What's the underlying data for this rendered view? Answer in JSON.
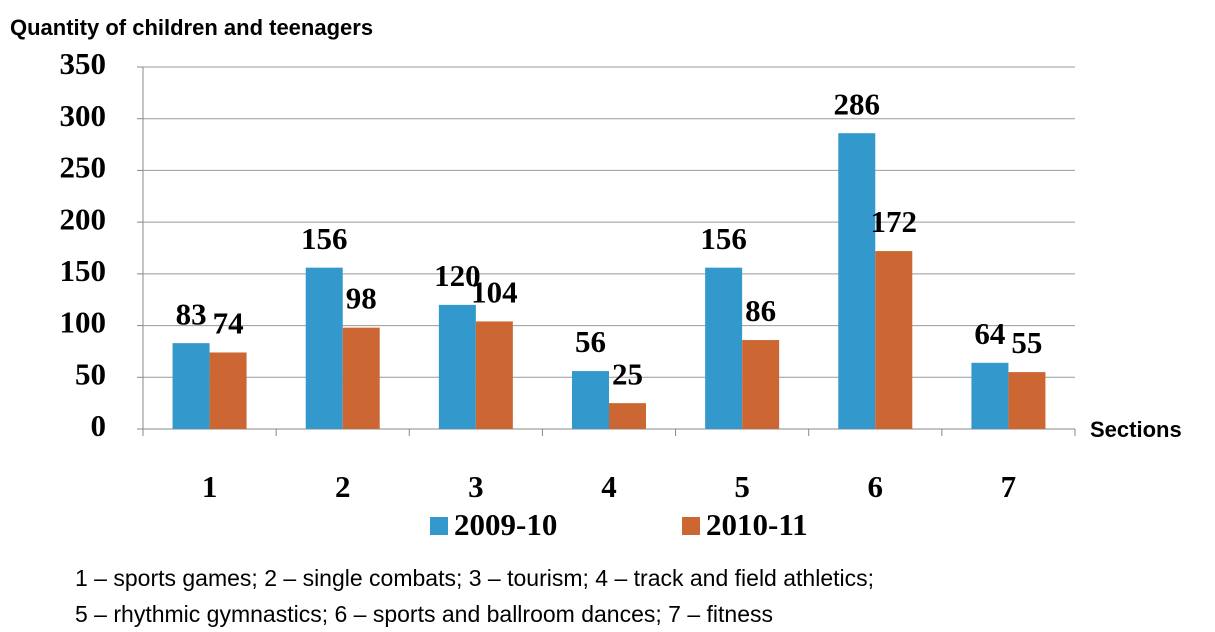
{
  "chart_data": {
    "type": "bar",
    "y_label": "Quantity of children and teenagers",
    "x_label": "Sections",
    "categories": [
      "1",
      "2",
      "3",
      "4",
      "5",
      "6",
      "7"
    ],
    "series": [
      {
        "name": "2009-10",
        "color": "#3399cc",
        "values": [
          83,
          156,
          120,
          56,
          156,
          286,
          64
        ]
      },
      {
        "name": "2010-11",
        "color": "#cc6633",
        "values": [
          74,
          98,
          104,
          25,
          86,
          172,
          55
        ]
      }
    ],
    "ylim": [
      0,
      350
    ],
    "yticks": [
      0,
      50,
      100,
      150,
      200,
      250,
      300,
      350
    ],
    "grid": true,
    "legend": "bottom",
    "notes": [
      "1 – sports games; 2 – single combats; 3 – tourism; 4 – track and field athletics;",
      "5 – rhythmic gymnastics; 6 – sports and ballroom dances; 7 – fitness"
    ]
  }
}
